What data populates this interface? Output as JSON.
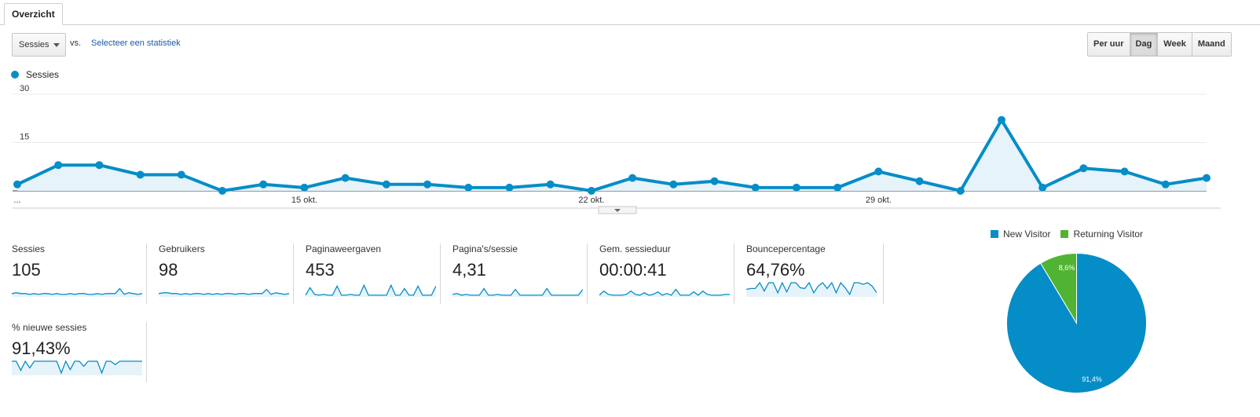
{
  "tabs": [
    {
      "label": "Overzicht"
    }
  ],
  "controls": {
    "metric_select": "Sessies",
    "vs_label": "vs.",
    "compare_link": "Selecteer een statistiek",
    "periods": [
      {
        "label": "Per uur",
        "active": false
      },
      {
        "label": "Dag",
        "active": true
      },
      {
        "label": "Week",
        "active": false
      },
      {
        "label": "Maand",
        "active": false
      }
    ]
  },
  "colors": {
    "series": "#058dc7",
    "returning": "#50b432",
    "fill": "#e6f3fa"
  },
  "chart_data": [
    {
      "type": "area",
      "series": [
        {
          "name": "Sessies",
          "values": [
            2,
            8,
            8,
            5,
            5,
            0,
            2,
            1,
            4,
            2,
            2,
            1,
            1,
            2,
            0,
            4,
            2,
            3,
            1,
            1,
            1,
            6,
            3,
            0,
            22,
            1,
            7,
            6,
            2,
            4
          ]
        }
      ],
      "yticks": [
        "30",
        "15"
      ],
      "ylim": [
        0,
        30
      ],
      "xticks": [
        {
          "index": 0,
          "label": "..."
        },
        {
          "index": 7,
          "label": "15 okt."
        },
        {
          "index": 14,
          "label": "22 okt."
        },
        {
          "index": 21,
          "label": "29 okt."
        }
      ]
    },
    {
      "type": "pie",
      "legend": [
        "New Visitor",
        "Returning Visitor"
      ],
      "values": [
        91.4,
        8.6
      ],
      "labels": [
        "91,4%",
        "8,6%"
      ]
    }
  ],
  "scorecards": [
    {
      "label": "Sessies",
      "value": "105",
      "spark": [
        3,
        4,
        3,
        3,
        2,
        3,
        2,
        3,
        3,
        2,
        3,
        2,
        2,
        3,
        2,
        3,
        3,
        2,
        2,
        3,
        2,
        3,
        3,
        3,
        9,
        2,
        4,
        3,
        2,
        3
      ]
    },
    {
      "label": "Gebruikers",
      "value": "98",
      "spark": [
        3,
        4,
        4,
        3,
        3,
        2,
        3,
        2,
        3,
        3,
        2,
        3,
        2,
        3,
        2,
        3,
        3,
        2,
        3,
        3,
        2,
        3,
        3,
        3,
        8,
        2,
        4,
        3,
        2,
        3
      ]
    },
    {
      "label": "Paginaweergaven",
      "value": "453",
      "spark": [
        1,
        10,
        2,
        1,
        2,
        1,
        1,
        12,
        1,
        1,
        2,
        1,
        1,
        13,
        1,
        1,
        1,
        1,
        1,
        13,
        1,
        1,
        9,
        1,
        1,
        12,
        1,
        1,
        1,
        12
      ]
    },
    {
      "label": "Pagina's/sessie",
      "value": "4,31",
      "spark": [
        2,
        3,
        1,
        2,
        1,
        1,
        1,
        9,
        1,
        1,
        2,
        1,
        1,
        1,
        8,
        1,
        1,
        1,
        1,
        1,
        1,
        9,
        1,
        1,
        1,
        1,
        1,
        1,
        1,
        8
      ]
    },
    {
      "label": "Gem. sessieduur",
      "value": "00:00:41",
      "spark": [
        1,
        6,
        2,
        1,
        1,
        1,
        2,
        6,
        2,
        1,
        4,
        1,
        2,
        5,
        1,
        3,
        1,
        8,
        1,
        1,
        1,
        5,
        1,
        6,
        2,
        1,
        1,
        1,
        2,
        2
      ]
    },
    {
      "label": "Bouncepercentage",
      "value": "64,76%",
      "spark": [
        8,
        9,
        9,
        16,
        6,
        16,
        16,
        4,
        16,
        5,
        16,
        16,
        10,
        9,
        16,
        4,
        12,
        16,
        9,
        16,
        4,
        16,
        10,
        2,
        16,
        16,
        14,
        16,
        12,
        4
      ]
    },
    {
      "label": "% nieuwe sessies",
      "value": "91,43%",
      "spark": [
        16,
        16,
        5,
        16,
        8,
        16,
        16,
        16,
        16,
        16,
        16,
        2,
        16,
        6,
        16,
        16,
        10,
        16,
        16,
        16,
        2,
        16,
        16,
        12,
        16,
        16,
        16,
        16,
        16,
        16
      ]
    }
  ]
}
